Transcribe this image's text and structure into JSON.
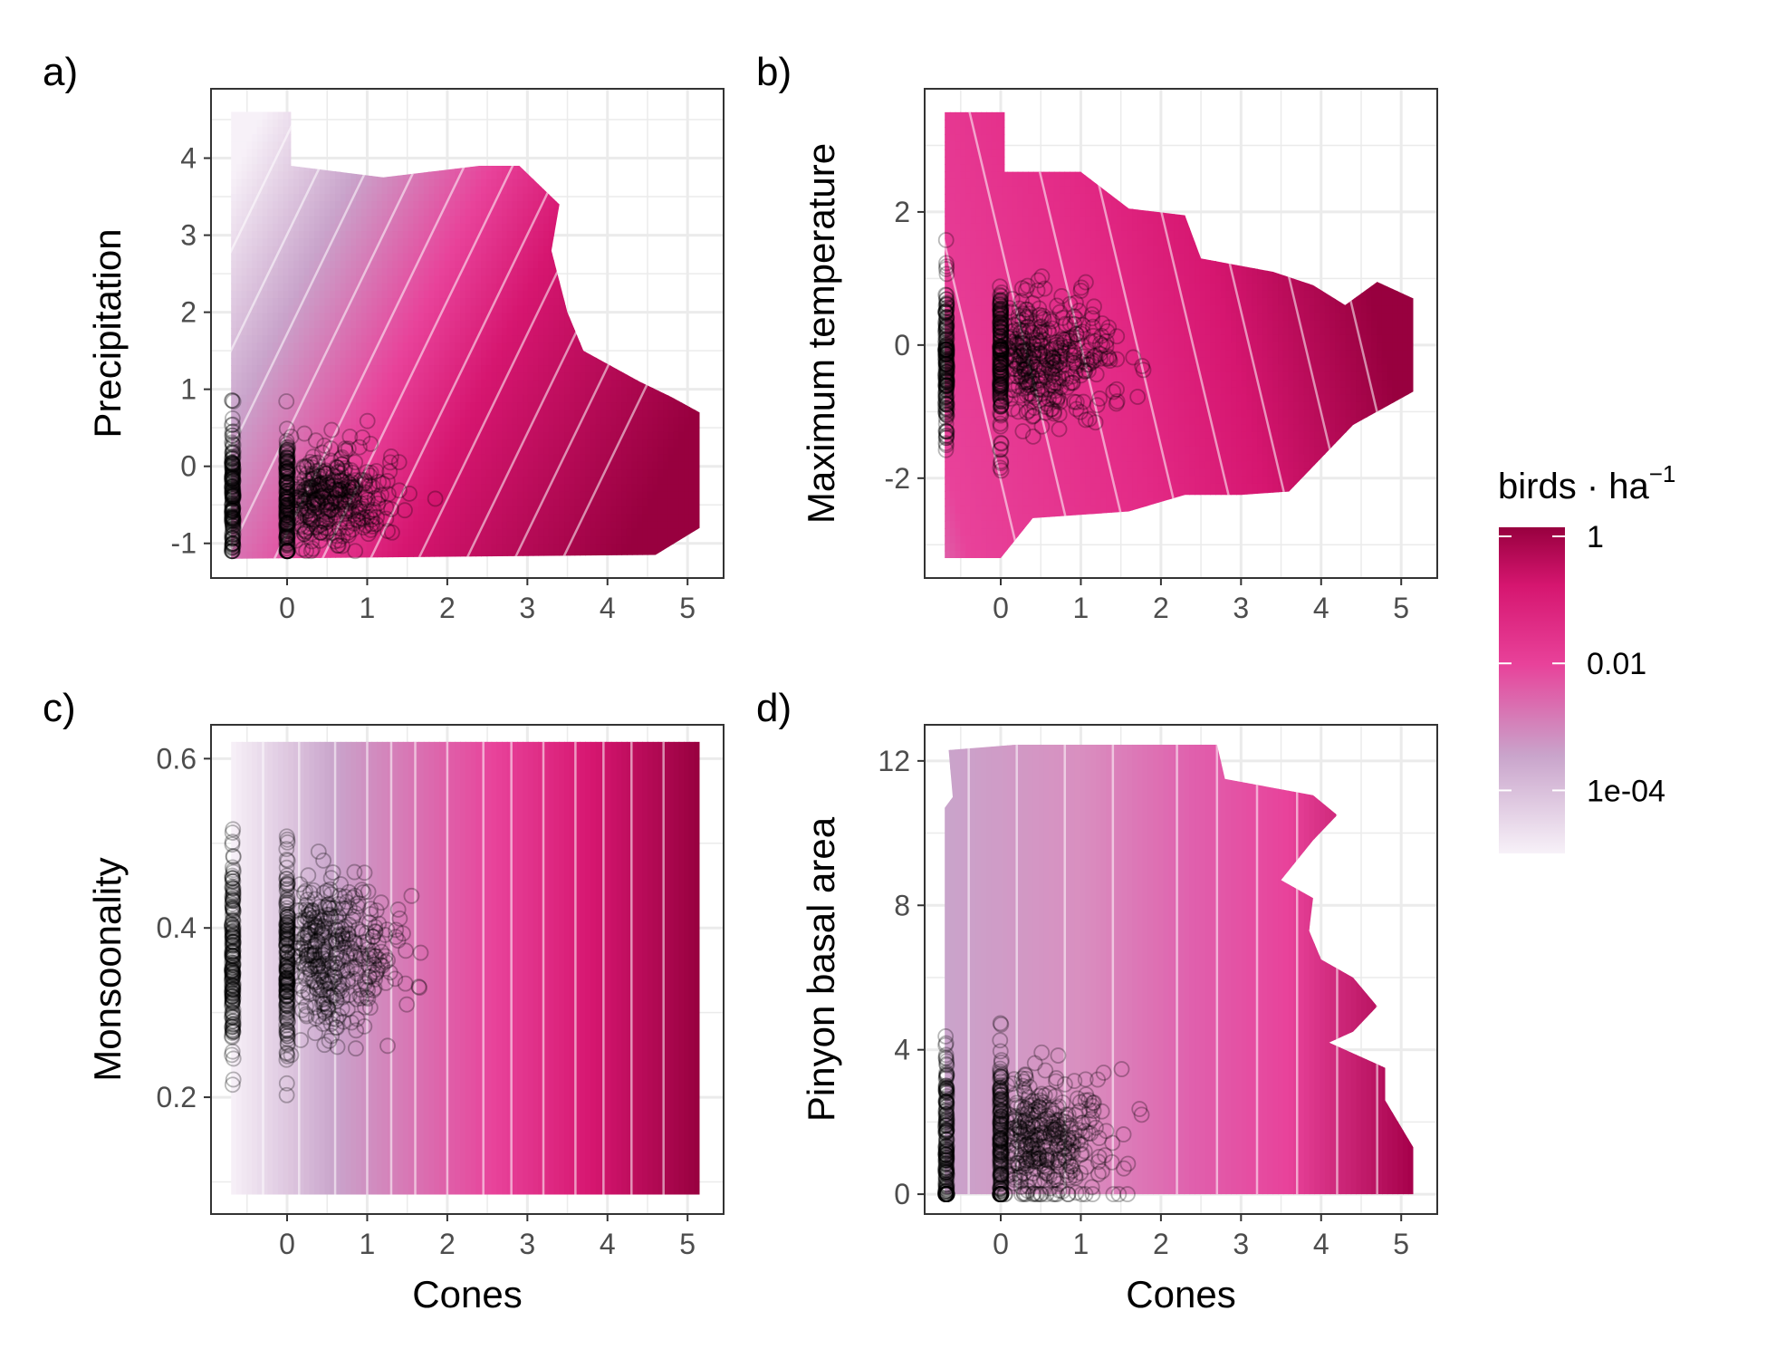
{
  "colors": {
    "low": "#f7f1f8",
    "mid_low": "#c9a4cb",
    "mid": "#e8429a",
    "high": "#d61670",
    "max": "#98003f",
    "grid": "#ebebeb",
    "point": "#000000",
    "contour": "#ffffff"
  },
  "legend": {
    "title_main": "birds · ha",
    "title_sup": "−1",
    "labels": [
      "1",
      "0.01",
      "1e-04"
    ],
    "values": [
      1,
      0.01,
      0.0001
    ]
  },
  "chart_data": [
    {
      "type": "heatmap",
      "panel_label": "a)",
      "xlabel": "",
      "ylabel": "Precipitation",
      "xlim": [
        -0.95,
        5.45
      ],
      "ylim": [
        -1.45,
        4.9
      ],
      "x_ticks": [
        0,
        1,
        2,
        3,
        4,
        5
      ],
      "x_tick_labels": [
        "0",
        "1",
        "2",
        "3",
        "4",
        "5"
      ],
      "y_ticks": [
        -1,
        0,
        1,
        2,
        3,
        4
      ],
      "y_tick_labels": [
        "-1",
        "0",
        "1",
        "2",
        "3",
        "4"
      ],
      "surface_x_range": [
        -0.7,
        5.15
      ],
      "surface_y_range": [
        -1.2,
        4.6
      ],
      "surface_hull": [
        [
          -0.7,
          4.6
        ],
        [
          0.05,
          4.6
        ],
        [
          0.05,
          3.9
        ],
        [
          1.2,
          3.75
        ],
        [
          2.4,
          3.9
        ],
        [
          2.9,
          3.9
        ],
        [
          3.4,
          3.4
        ],
        [
          3.3,
          2.8
        ],
        [
          3.5,
          2.0
        ],
        [
          3.7,
          1.5
        ],
        [
          4.4,
          1.1
        ],
        [
          4.8,
          0.9
        ],
        [
          5.15,
          0.7
        ],
        [
          5.15,
          -0.8
        ],
        [
          4.6,
          -1.15
        ],
        [
          -0.7,
          -1.2
        ]
      ],
      "gradient": {
        "x_weight": 1.0,
        "y_weight": -0.45,
        "color_stops": [
          [
            -3.0,
            "#f7f1f8"
          ],
          [
            -1.5,
            "#c9a4cb"
          ],
          [
            0.2,
            "#e8429a"
          ],
          [
            1.4,
            "#d61670"
          ],
          [
            4.2,
            "#98003f"
          ]
        ]
      },
      "contour_levels": [
        -2.0,
        -1.4,
        -0.8,
        -0.2,
        0.4,
        1.0,
        1.6,
        2.2,
        2.8,
        3.4,
        4.0
      ],
      "points": {
        "cluster_x": [
          -0.68,
          0.0
        ],
        "x_min": -0.7,
        "x_max": 4.0,
        "y_mean": -0.4,
        "y_min": -1.1,
        "y_max": 2.9,
        "n_cluster": 180,
        "n_cloud": 360
      }
    },
    {
      "type": "heatmap",
      "panel_label": "b)",
      "xlabel": "",
      "ylabel": "Maximum temperature",
      "xlim": [
        -0.95,
        5.45
      ],
      "ylim": [
        -3.5,
        3.85
      ],
      "x_ticks": [
        0,
        1,
        2,
        3,
        4,
        5
      ],
      "x_tick_labels": [
        "0",
        "1",
        "2",
        "3",
        "4",
        "5"
      ],
      "y_ticks": [
        -2,
        0,
        2
      ],
      "y_tick_labels": [
        "-2",
        "0",
        "2"
      ],
      "surface_x_range": [
        -0.7,
        5.15
      ],
      "surface_y_range": [
        -3.2,
        3.5
      ],
      "surface_hull": [
        [
          -0.7,
          3.5
        ],
        [
          0.05,
          3.5
        ],
        [
          0.05,
          2.6
        ],
        [
          1.0,
          2.6
        ],
        [
          1.6,
          2.05
        ],
        [
          2.3,
          1.95
        ],
        [
          2.5,
          1.3
        ],
        [
          3.4,
          1.1
        ],
        [
          3.9,
          0.9
        ],
        [
          4.3,
          0.6
        ],
        [
          4.7,
          0.95
        ],
        [
          5.15,
          0.7
        ],
        [
          5.15,
          -0.7
        ],
        [
          4.4,
          -1.2
        ],
        [
          3.6,
          -2.2
        ],
        [
          3.0,
          -2.25
        ],
        [
          2.3,
          -2.25
        ],
        [
          1.6,
          -2.5
        ],
        [
          0.4,
          -2.6
        ],
        [
          0.0,
          -3.2
        ],
        [
          -0.7,
          -3.2
        ]
      ],
      "gradient": {
        "x_weight": 1.0,
        "y_weight": 0.22,
        "color_stops": [
          [
            -1.4,
            "#c9a4cb"
          ],
          [
            -0.4,
            "#e8429a"
          ],
          [
            2.0,
            "#e32a86"
          ],
          [
            3.5,
            "#d61670"
          ],
          [
            5.4,
            "#98003f"
          ]
        ]
      },
      "contour_levels": [
        -0.4,
        0.3,
        1.0,
        1.7,
        2.4,
        3.1,
        3.8,
        4.5
      ],
      "points": {
        "cluster_x": [
          -0.68,
          0.0
        ],
        "x_min": -0.7,
        "x_max": 4.0,
        "y_mean": -0.2,
        "y_min": -2.4,
        "y_max": 3.1,
        "n_cluster": 180,
        "n_cloud": 360
      }
    },
    {
      "type": "heatmap",
      "panel_label": "c)",
      "xlabel": "Cones",
      "ylabel": "Monsoonality",
      "xlim": [
        -0.95,
        5.45
      ],
      "ylim": [
        0.062,
        0.64
      ],
      "x_ticks": [
        0,
        1,
        2,
        3,
        4,
        5
      ],
      "x_tick_labels": [
        "0",
        "1",
        "2",
        "3",
        "4",
        "5"
      ],
      "y_ticks": [
        0.2,
        0.4,
        0.6
      ],
      "y_tick_labels": [
        "0.2",
        "0.4",
        "0.6"
      ],
      "surface_x_range": [
        -0.7,
        5.15
      ],
      "surface_y_range": [
        0.085,
        0.62
      ],
      "surface_hull": [
        [
          -0.7,
          0.62
        ],
        [
          5.15,
          0.62
        ],
        [
          5.15,
          0.085
        ],
        [
          -0.7,
          0.085
        ]
      ],
      "gradient": {
        "x_weight": 1.0,
        "y_weight": 0.0,
        "color_stops": [
          [
            -0.7,
            "#f7f1f8"
          ],
          [
            0.6,
            "#c9a4cb"
          ],
          [
            2.6,
            "#e8429a"
          ],
          [
            3.8,
            "#d61670"
          ],
          [
            5.15,
            "#98003f"
          ]
        ]
      },
      "contour_levels": [
        -0.3,
        0.15,
        0.6,
        1.0,
        1.3,
        1.6,
        2.0,
        2.45,
        2.8,
        3.2,
        3.6,
        3.95,
        4.3,
        4.7
      ],
      "points": {
        "cluster_x": [
          -0.68,
          0.0
        ],
        "x_min": -0.7,
        "x_max": 3.6,
        "y_mean": 0.37,
        "y_min": 0.09,
        "y_max": 0.61,
        "n_cluster": 180,
        "n_cloud": 380
      }
    },
    {
      "type": "heatmap",
      "panel_label": "d)",
      "xlabel": "Cones",
      "ylabel": "Pinyon basal area",
      "xlim": [
        -0.95,
        5.45
      ],
      "ylim": [
        -0.55,
        13.0
      ],
      "x_ticks": [
        0,
        1,
        2,
        3,
        4,
        5
      ],
      "x_tick_labels": [
        "0",
        "1",
        "2",
        "3",
        "4",
        "5"
      ],
      "y_ticks": [
        0,
        4,
        8,
        12
      ],
      "y_tick_labels": [
        "0",
        "4",
        "8",
        "12"
      ],
      "surface_x_range": [
        -0.7,
        5.15
      ],
      "surface_y_range": [
        0.0,
        12.45
      ],
      "surface_hull": [
        [
          -0.7,
          10.7
        ],
        [
          -0.6,
          11.0
        ],
        [
          -0.65,
          12.3
        ],
        [
          0.2,
          12.45
        ],
        [
          2.7,
          12.45
        ],
        [
          2.8,
          11.5
        ],
        [
          3.9,
          11.05
        ],
        [
          4.2,
          10.5
        ],
        [
          3.9,
          9.8
        ],
        [
          3.5,
          8.7
        ],
        [
          3.9,
          8.2
        ],
        [
          3.85,
          7.3
        ],
        [
          4.0,
          6.5
        ],
        [
          4.4,
          6.0
        ],
        [
          4.7,
          5.2
        ],
        [
          4.4,
          4.5
        ],
        [
          4.1,
          4.2
        ],
        [
          4.5,
          3.8
        ],
        [
          4.8,
          3.5
        ],
        [
          4.8,
          2.6
        ],
        [
          5.15,
          1.3
        ],
        [
          5.15,
          0.0
        ],
        [
          -0.7,
          0.0
        ]
      ],
      "gradient": {
        "x_weight": 1.0,
        "y_weight": 0.0,
        "color_stops": [
          [
            -0.7,
            "#c9a4cb"
          ],
          [
            1.0,
            "#d98fc0"
          ],
          [
            2.4,
            "#e060ad"
          ],
          [
            3.6,
            "#e8429a"
          ],
          [
            5.15,
            "#a6004a"
          ]
        ]
      },
      "contour_levels": [
        -0.4,
        0.2,
        0.8,
        1.4,
        2.2,
        2.7,
        3.2,
        3.7,
        4.2,
        4.7
      ],
      "points": {
        "cluster_x": [
          -0.68,
          0.0
        ],
        "x_min": -0.7,
        "x_max": 4.0,
        "y_mean": 1.5,
        "y_min": 0.0,
        "y_max": 11.9,
        "n_cluster": 180,
        "n_cloud": 360
      }
    }
  ]
}
